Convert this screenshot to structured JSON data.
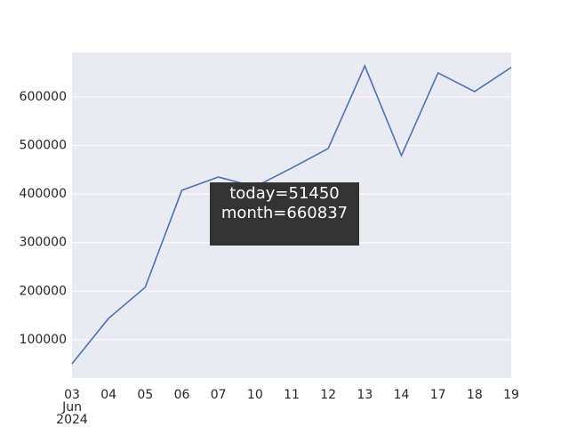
{
  "chart_data": {
    "type": "line",
    "categories": [
      "03\nJun\n2024",
      "04",
      "05",
      "06",
      "07",
      "10",
      "11",
      "12",
      "13",
      "14",
      "17",
      "18",
      "19"
    ],
    "series": [
      {
        "color": "#4c72b0",
        "values": [
          50500,
          144000,
          208000,
          407700,
          435000,
          415000,
          453500,
          493800,
          664000,
          479000,
          649500,
          611000,
          660837
        ]
      }
    ],
    "ylim": [
      21000,
      691500
    ],
    "yticks": [
      100000,
      200000,
      300000,
      400000,
      500000,
      600000
    ],
    "grid": true,
    "annotation": "today=51450\nmonth=660837"
  }
}
